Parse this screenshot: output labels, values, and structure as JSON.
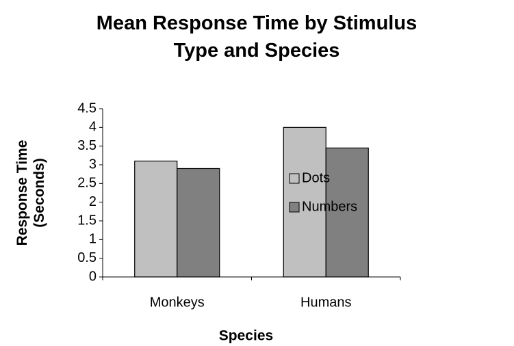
{
  "chart_data": {
    "type": "bar",
    "title": "Mean Response Time by Stimulus Type and Species",
    "xlabel": "Species",
    "ylabel": "Response Time (Seconds)",
    "categories": [
      "Monkeys",
      "Humans"
    ],
    "series": [
      {
        "name": "Dots",
        "color": "#c0c0c0",
        "values": [
          3.1,
          4.0
        ]
      },
      {
        "name": "Numbers",
        "color": "#808080",
        "values": [
          2.9,
          3.45
        ]
      }
    ],
    "ylim": [
      0,
      4.5
    ],
    "yticks": [
      0,
      0.5,
      1,
      1.5,
      2,
      2.5,
      3,
      3.5,
      4,
      4.5
    ],
    "legend": "right"
  }
}
